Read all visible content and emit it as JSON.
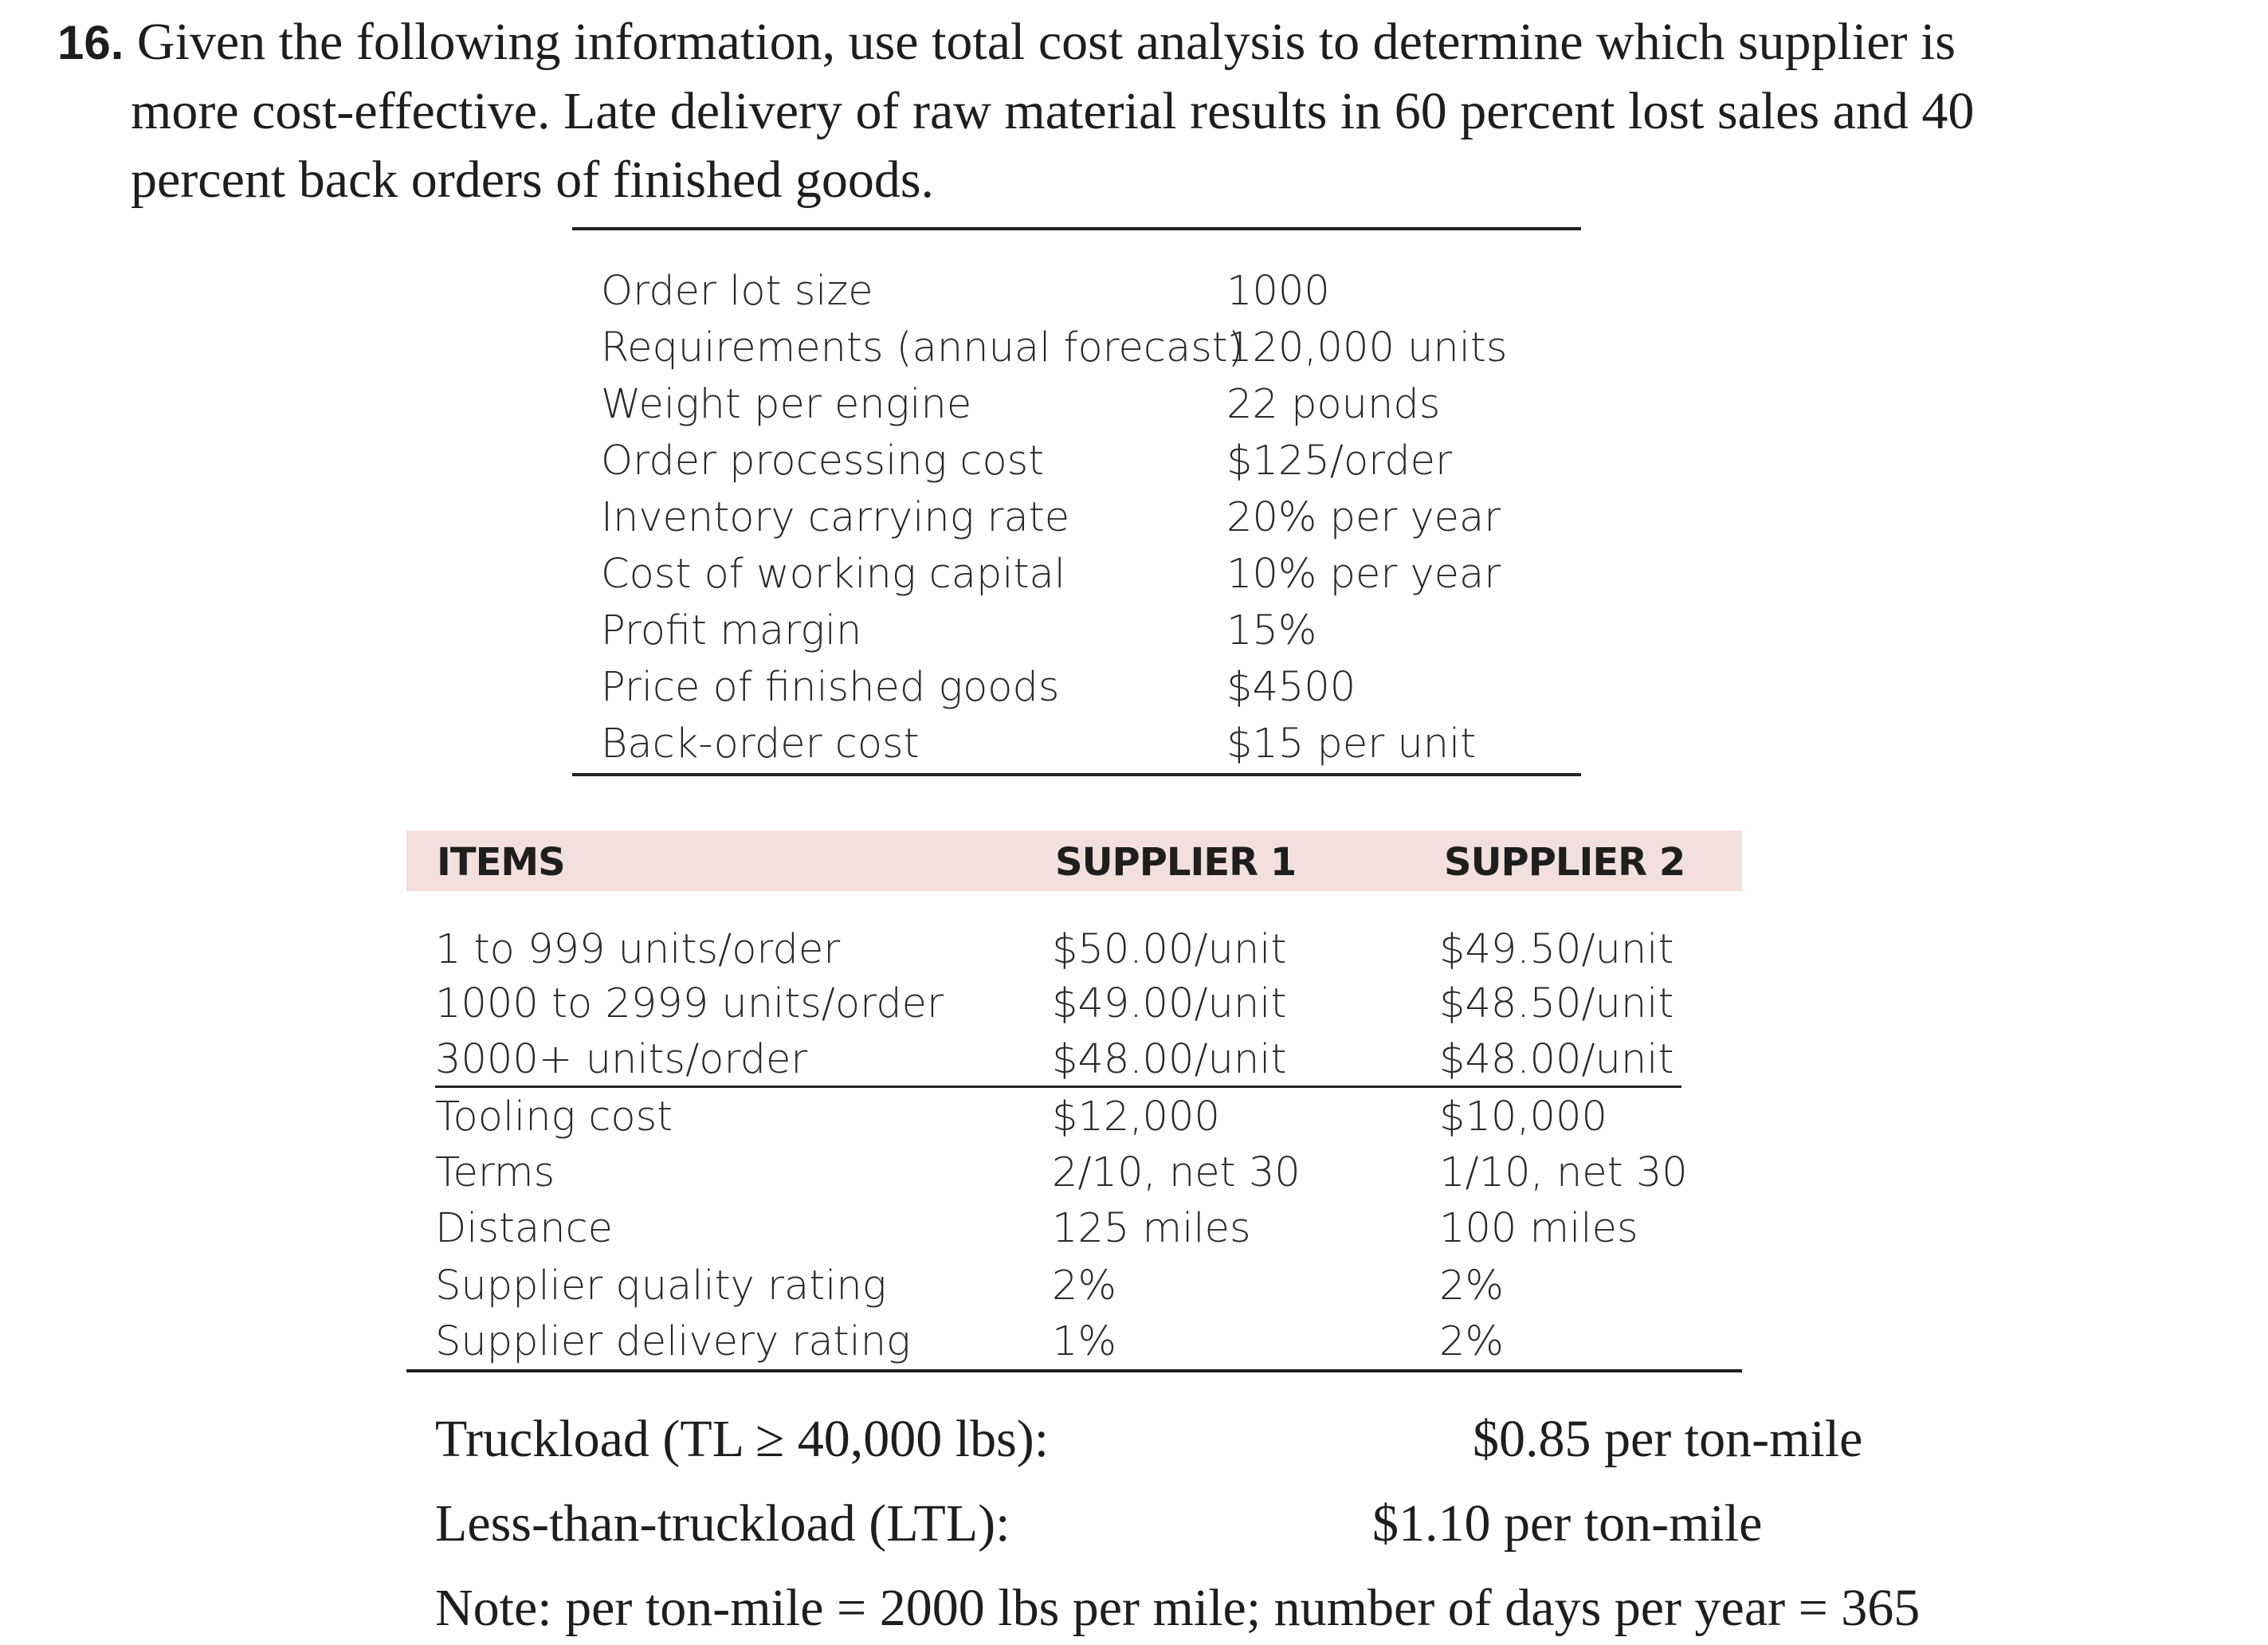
{
  "question": {
    "number": "16.",
    "line1": "Given the following information, use total cost analysis to determine which supplier is",
    "line2": "more cost-effective. Late delivery of raw material results in 60 percent lost sales and 40",
    "line3": "percent back orders of finished goods."
  },
  "parameters": [
    {
      "label": "Order lot size",
      "value": "1000"
    },
    {
      "label": "Requirements (annual forecast)",
      "value": "120,000 units"
    },
    {
      "label": "Weight per engine",
      "value": "22 pounds"
    },
    {
      "label": "Order processing cost",
      "value": "$125/order"
    },
    {
      "label": "Inventory carrying rate",
      "value": "20% per year"
    },
    {
      "label": "Cost of working capital",
      "value": "10% per year"
    },
    {
      "label": "Profit margin",
      "value": "15%"
    },
    {
      "label": "Price of finished goods",
      "value": "$4500"
    },
    {
      "label": "Back-order cost",
      "value": "$15 per unit"
    }
  ],
  "suppliers": {
    "headers": {
      "items": "ITEMS",
      "supplier1": "SUPPLIER 1",
      "supplier2": "SUPPLIER 2"
    },
    "price_rows": [
      {
        "item": "1 to 999 units/order",
        "s1": "$50.00/unit",
        "s2": "$49.50/unit"
      },
      {
        "item": "1000 to 2999 units/order",
        "s1": "$49.00/unit",
        "s2": "$48.50/unit"
      },
      {
        "item": "3000+ units/order",
        "s1": "$48.00/unit",
        "s2": "$48.00/unit"
      }
    ],
    "other_rows": [
      {
        "item": "Tooling cost",
        "s1": "$12,000",
        "s2": "$10,000"
      },
      {
        "item": "Terms",
        "s1": "2/10, net 30",
        "s2": "1/10, net 30"
      },
      {
        "item": "Distance",
        "s1": "125 miles",
        "s2": "100 miles"
      },
      {
        "item": "Supplier quality rating",
        "s1": "2%",
        "s2": "2%"
      },
      {
        "item": "Supplier delivery rating",
        "s1": "1%",
        "s2": "2%"
      }
    ]
  },
  "rates": {
    "truckload_label": "Truckload (TL ≥ 40,000 lbs):",
    "truckload_value": "$0.85 per ton-mile",
    "ltl_label": "Less-than-truckload (LTL):",
    "ltl_value": "$1.10 per ton-mile",
    "note": "Note: per ton-mile = 2000 lbs per mile; number of days per year = 365"
  }
}
